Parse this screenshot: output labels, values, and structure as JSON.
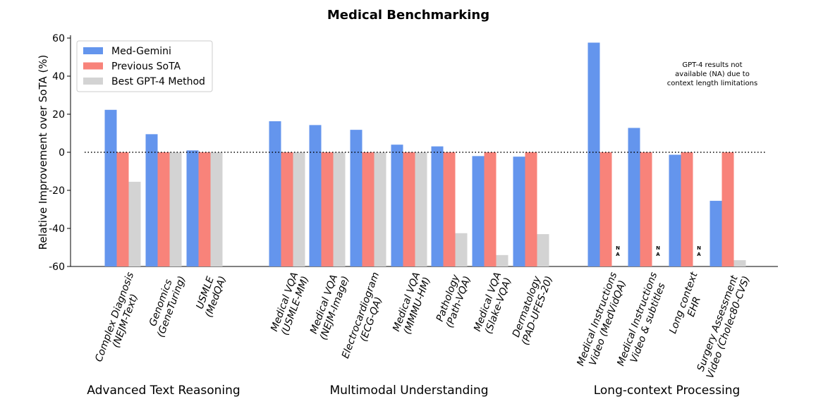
{
  "chart_data": {
    "type": "bar",
    "title": "Medical Benchmarking",
    "y_label": "Relative Improvement over SoTA (%)",
    "categories": [
      "Complex Diagnosis\n(NEJM-Text)",
      "Genomics\n(GeneTuring)",
      "USMLE\n(MedQA)",
      "Medical VQA\n(USMLE-MM)",
      "Medical VQA\n(NEJM-Image)",
      "Electrocardiogram\n(ECG-QA)",
      "Medical VQA\n(MMMU-HM)",
      "Pathology\n(Path-VQA)",
      "Medical VQA\n(Slake-VQA)",
      "Dermatology\n(PAD-UFES-20)",
      "Medical Instructions\nVideo (MedVidQA)",
      "Medical Instructions\nVideo & subtitles",
      "Long context\nEHR",
      "Surgery Assessment\nVideo (Cholec80-CVS)"
    ],
    "groups": [
      {
        "label": "Advanced Text Reasoning",
        "from": 0,
        "to": 2
      },
      {
        "label": "Multimodal Understanding",
        "from": 3,
        "to": 9
      },
      {
        "label": "Long-context Processing",
        "from": 10,
        "to": 13
      }
    ],
    "series": [
      {
        "name": "Med-Gemini",
        "color": "#6495ed",
        "values": [
          22.3,
          9.5,
          1.0,
          16.3,
          14.3,
          11.8,
          4.0,
          3.1,
          -2.0,
          -2.3,
          57.6,
          12.8,
          -1.3,
          -25.5
        ]
      },
      {
        "name": "Previous SoTA",
        "color": "#f8837a",
        "values": [
          0,
          0,
          0,
          0,
          0,
          0,
          0,
          0,
          0,
          0,
          0,
          0,
          0,
          0
        ]
      },
      {
        "name": "Best GPT-4 Method",
        "color": "#d3d3d3",
        "values": [
          -15.5,
          0,
          0,
          0,
          0,
          0,
          0,
          -42.5,
          -54,
          -43,
          null,
          null,
          null,
          -56.7
        ],
        "value_labels": [
          null,
          null,
          null,
          null,
          null,
          null,
          null,
          null,
          null,
          null,
          "NA",
          "NA",
          "NA",
          null
        ]
      }
    ],
    "annotation": "GPT-4 results not\navailable (NA)  due to\ncontext length limitations",
    "reference_line": 0,
    "ylim": [
      -60,
      60
    ],
    "yticks": [
      -60,
      -40,
      -20,
      0,
      20,
      40,
      60
    ],
    "legend": "upper left"
  }
}
